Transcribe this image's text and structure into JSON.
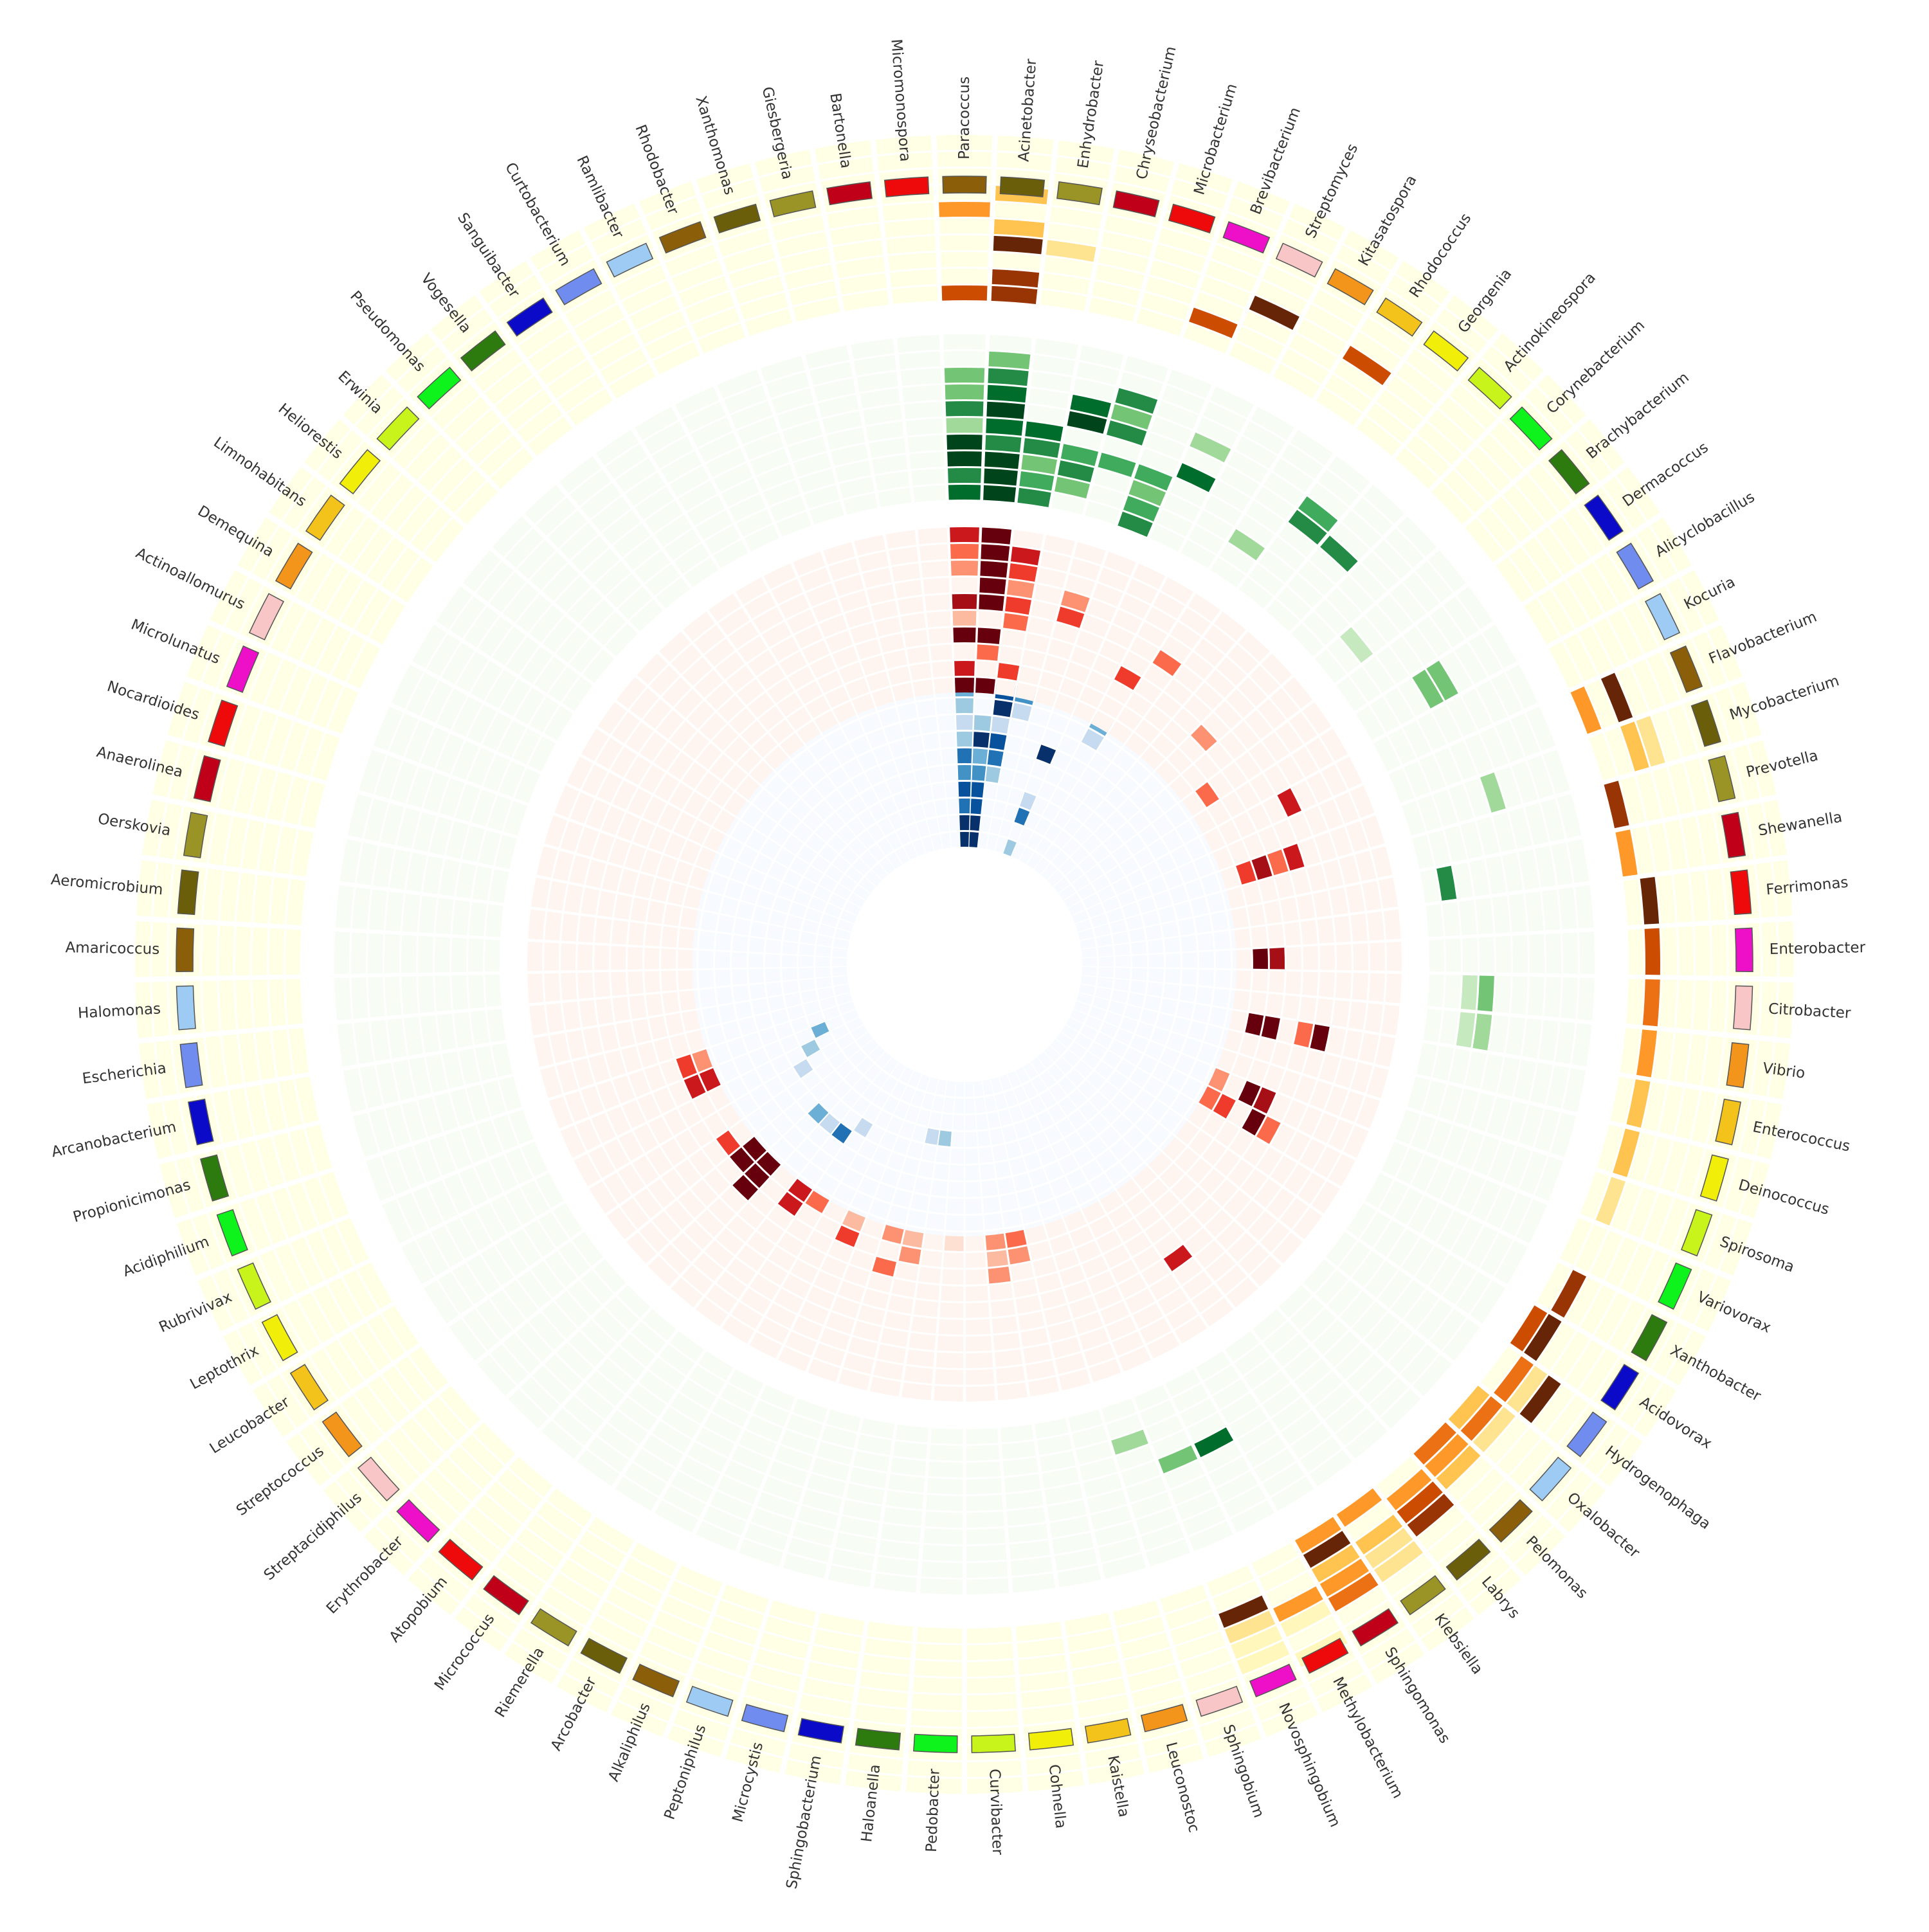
{
  "chart_data": {
    "type": "heatmap",
    "layout": "circular",
    "title": "",
    "categories": [
      "Paracoccus",
      "Acinetobacter",
      "Enhydrobacter",
      "Chryseobacterium",
      "Microbacterium",
      "Brevibacterium",
      "Streptomyces",
      "Kitasatospora",
      "Rhodococcus",
      "Georgenia",
      "Actinokineospora",
      "Corynebacterium",
      "Brachybacterium",
      "Dermacoccus",
      "Alicyclobacillus",
      "Kocuria",
      "Flavobacterium",
      "Mycobacterium",
      "Prevotella",
      "Shewanella",
      "Ferrimonas",
      "Enterobacter",
      "Citrobacter",
      "Vibrio",
      "Enterococcus",
      "Deinococcus",
      "Spirosoma",
      "Variovorax",
      "Xanthobacter",
      "Acidovorax",
      "Hydrogenophaga",
      "Oxalobacter",
      "Pelomonas",
      "Labrys",
      "Klebsiella",
      "Sphingomonas",
      "Methylobacterium",
      "Novosphingobium",
      "Sphingobium",
      "Leuconostoc",
      "Kaistella",
      "Cohnella",
      "Curvibacter",
      "Pedobacter",
      "Haloanella",
      "Sphingobacterium",
      "Microcystis",
      "Peptoniphilus",
      "Alkaliphilus",
      "Arcobacter",
      "Riemerella",
      "Micrococcus",
      "Atopobium",
      "Erythrobacter",
      "Streptacidiphilus",
      "Streptococcus",
      "Leucobacter",
      "Leptothrix",
      "Rubrivivax",
      "Acidiphilium",
      "Propionicimonas",
      "Arcanobacterium",
      "Escherichia",
      "Halomonas",
      "Amaricoccus",
      "Aeromicrobium",
      "Oerskovia",
      "Anaerolinea",
      "Nocardioides",
      "Microlunatus",
      "Actinoallomurus",
      "Demequina",
      "Limnohabitans",
      "Heliorestis",
      "Erwinia",
      "Pseudomonas",
      "Vogesella",
      "Sanguibacter",
      "Curtobacterium",
      "Ramlibacter",
      "Rhodobacter",
      "Xanthomonas",
      "Giesbergeria",
      "Bartonella",
      "Micromonospora"
    ],
    "category_colors": [
      "#8b5e0a",
      "#6b5e0a",
      "#9a9325",
      "#c00018",
      "#ee0a0a",
      "#ee10c8",
      "#f8c6c6",
      "#f3941b",
      "#f3c21b",
      "#f1ef0a",
      "#c8f31b",
      "#0ef31b",
      "#2d7a0e",
      "#0a0ac8",
      "#6f8cee",
      "#9ecbf3",
      "#8b5e0a",
      "#6b5e0a",
      "#9a9325",
      "#c00018",
      "#ee0a0a",
      "#ee10c8",
      "#f8c6c6",
      "#f3941b",
      "#f3c21b",
      "#f1ef0a",
      "#c8f31b",
      "#0ef31b",
      "#2d7a0e",
      "#0a0ac8",
      "#6f8cee",
      "#9ecbf3",
      "#8b5e0a",
      "#6b5e0a",
      "#9a9325",
      "#c00018",
      "#ee0a0a",
      "#ee10c8",
      "#f8c6c6",
      "#f3941b",
      "#f3c21b",
      "#f1ef0a",
      "#c8f31b",
      "#0ef31b",
      "#2d7a0e",
      "#0a0ac8",
      "#6f8cee",
      "#9ecbf3",
      "#8b5e0a",
      "#6b5e0a",
      "#9a9325",
      "#c00018",
      "#ee0a0a",
      "#ee10c8",
      "#f8c6c6",
      "#f3941b",
      "#f3c21b",
      "#f1ef0a",
      "#c8f31b",
      "#0ef31b",
      "#2d7a0e",
      "#0a0ac8",
      "#6f8cee",
      "#9ecbf3",
      "#8b5e0a",
      "#6b5e0a",
      "#9a9325",
      "#c00018",
      "#ee0a0a",
      "#ee10c8",
      "#f8c6c6",
      "#f3941b",
      "#f3c21b",
      "#f1ef0a",
      "#c8f31b",
      "#0ef31b",
      "#2d7a0e",
      "#0a0ac8",
      "#6f8cee",
      "#9ecbf3",
      "#8b5e0a",
      "#6b5e0a",
      "#9a9325",
      "#c00018",
      "#ee0a0a"
    ],
    "rings": [
      {
        "palette": [
          "#f7fbff",
          "#deebf7",
          "#c6dbef",
          "#9ecae1",
          "#6baed6",
          "#4292c6",
          "#2171b5",
          "#08519c",
          "#08306b"
        ]
      },
      {
        "palette": [
          "#fff5f0",
          "#fee0d2",
          "#fcbba1",
          "#fc9272",
          "#fb6a4a",
          "#ef3b2c",
          "#cb181d",
          "#a50f15",
          "#67000d"
        ]
      },
      {
        "palette": [
          "#f7fcf5",
          "#e5f5e0",
          "#c7e9c0",
          "#a1d99b",
          "#74c476",
          "#41ab5d",
          "#238b45",
          "#006d2c",
          "#00441b"
        ]
      },
      {
        "palette": [
          "#ffffe5",
          "#fff7bc",
          "#fee391",
          "#fec44f",
          "#fe9929",
          "#ec7014",
          "#cc4c02",
          "#993404",
          "#662506"
        ]
      }
    ],
    "value_range": [
      0,
      8
    ],
    "cells": [
      [
        0,
        0,
        0,
        8
      ],
      [
        0,
        0,
        1,
        8
      ],
      [
        0,
        0,
        2,
        6
      ],
      [
        0,
        0,
        3,
        7
      ],
      [
        0,
        0,
        4,
        5
      ],
      [
        0,
        0,
        5,
        6
      ],
      [
        0,
        0,
        6,
        3
      ],
      [
        0,
        0,
        7,
        2
      ],
      [
        0,
        0,
        8,
        3
      ],
      [
        0,
        0,
        9,
        4
      ],
      [
        0,
        1,
        0,
        8
      ],
      [
        0,
        1,
        1,
        8
      ],
      [
        0,
        1,
        2,
        7
      ],
      [
        0,
        1,
        3,
        7
      ],
      [
        0,
        1,
        4,
        5
      ],
      [
        0,
        1,
        5,
        4
      ],
      [
        0,
        1,
        6,
        8
      ],
      [
        0,
        1,
        7,
        3
      ],
      [
        0,
        2,
        4,
        3
      ],
      [
        0,
        2,
        5,
        6
      ],
      [
        0,
        2,
        6,
        7
      ],
      [
        0,
        2,
        7,
        2
      ],
      [
        0,
        2,
        8,
        8
      ],
      [
        0,
        2,
        9,
        7
      ],
      [
        0,
        3,
        8,
        2
      ],
      [
        0,
        3,
        9,
        5
      ],
      [
        0,
        5,
        0,
        3
      ],
      [
        0,
        5,
        2,
        6
      ],
      [
        0,
        5,
        3,
        2
      ],
      [
        0,
        5,
        6,
        8
      ],
      [
        0,
        7,
        8,
        2
      ],
      [
        0,
        7,
        9,
        4
      ],
      [
        0,
        44,
        3,
        3
      ],
      [
        0,
        45,
        3,
        2
      ],
      [
        0,
        50,
        4,
        2
      ],
      [
        0,
        51,
        5,
        6
      ],
      [
        0,
        52,
        5,
        2
      ],
      [
        0,
        53,
        5,
        4
      ],
      [
        0,
        56,
        4,
        2
      ],
      [
        0,
        57,
        3,
        3
      ],
      [
        0,
        58,
        2,
        4
      ],
      [
        1,
        0,
        0,
        8
      ],
      [
        1,
        0,
        1,
        6
      ],
      [
        1,
        0,
        3,
        8
      ],
      [
        1,
        0,
        4,
        2
      ],
      [
        1,
        0,
        5,
        7
      ],
      [
        1,
        0,
        7,
        3
      ],
      [
        1,
        0,
        8,
        4
      ],
      [
        1,
        0,
        9,
        6
      ],
      [
        1,
        1,
        0,
        8
      ],
      [
        1,
        1,
        2,
        4
      ],
      [
        1,
        1,
        3,
        8
      ],
      [
        1,
        1,
        5,
        8
      ],
      [
        1,
        1,
        6,
        8
      ],
      [
        1,
        1,
        7,
        8
      ],
      [
        1,
        1,
        8,
        8
      ],
      [
        1,
        1,
        9,
        8
      ],
      [
        1,
        2,
        1,
        5
      ],
      [
        1,
        2,
        4,
        4
      ],
      [
        1,
        2,
        5,
        5
      ],
      [
        1,
        2,
        6,
        3
      ],
      [
        1,
        2,
        7,
        5
      ],
      [
        1,
        2,
        8,
        6
      ],
      [
        1,
        4,
        5,
        5
      ],
      [
        1,
        4,
        6,
        3
      ],
      [
        1,
        7,
        3,
        5
      ],
      [
        1,
        8,
        5,
        4
      ],
      [
        1,
        11,
        3,
        3
      ],
      [
        1,
        13,
        1,
        4
      ],
      [
        1,
        15,
        5,
        6
      ],
      [
        1,
        17,
        1,
        5
      ],
      [
        1,
        17,
        2,
        7
      ],
      [
        1,
        17,
        3,
        4
      ],
      [
        1,
        17,
        4,
        6
      ],
      [
        1,
        21,
        1,
        8
      ],
      [
        1,
        21,
        2,
        7
      ],
      [
        1,
        24,
        1,
        8
      ],
      [
        1,
        24,
        2,
        8
      ],
      [
        1,
        24,
        4,
        4
      ],
      [
        1,
        24,
        5,
        8
      ],
      [
        1,
        27,
        0,
        3
      ],
      [
        1,
        27,
        2,
        8
      ],
      [
        1,
        27,
        3,
        7
      ],
      [
        1,
        28,
        0,
        4
      ],
      [
        1,
        28,
        1,
        5
      ],
      [
        1,
        28,
        3,
        8
      ],
      [
        1,
        28,
        4,
        4
      ],
      [
        1,
        34,
        5,
        6
      ],
      [
        1,
        40,
        0,
        4
      ],
      [
        1,
        40,
        1,
        3
      ],
      [
        1,
        41,
        0,
        3
      ],
      [
        1,
        41,
        1,
        2
      ],
      [
        1,
        41,
        2,
        3
      ],
      [
        1,
        43,
        0,
        1
      ],
      [
        1,
        45,
        0,
        2
      ],
      [
        1,
        45,
        1,
        3
      ],
      [
        1,
        46,
        0,
        3
      ],
      [
        1,
        46,
        2,
        4
      ],
      [
        1,
        48,
        0,
        2
      ],
      [
        1,
        48,
        1,
        5
      ],
      [
        1,
        50,
        0,
        4
      ],
      [
        1,
        51,
        0,
        6
      ],
      [
        1,
        51,
        1,
        6
      ],
      [
        1,
        53,
        0,
        8
      ],
      [
        1,
        53,
        1,
        8
      ],
      [
        1,
        53,
        2,
        8
      ],
      [
        1,
        54,
        0,
        8
      ],
      [
        1,
        54,
        1,
        8
      ],
      [
        1,
        55,
        1,
        5
      ],
      [
        1,
        58,
        0,
        6
      ],
      [
        1,
        58,
        1,
        6
      ],
      [
        1,
        59,
        0,
        3
      ],
      [
        1,
        59,
        1,
        5
      ],
      [
        2,
        0,
        0,
        7
      ],
      [
        2,
        0,
        1,
        6
      ],
      [
        2,
        0,
        2,
        8
      ],
      [
        2,
        0,
        3,
        8
      ],
      [
        2,
        0,
        4,
        3
      ],
      [
        2,
        0,
        5,
        6
      ],
      [
        2,
        0,
        6,
        4
      ],
      [
        2,
        0,
        7,
        4
      ],
      [
        2,
        1,
        0,
        8
      ],
      [
        2,
        1,
        1,
        8
      ],
      [
        2,
        1,
        2,
        8
      ],
      [
        2,
        1,
        3,
        6
      ],
      [
        2,
        1,
        4,
        7
      ],
      [
        2,
        1,
        5,
        8
      ],
      [
        2,
        1,
        6,
        7
      ],
      [
        2,
        1,
        7,
        6
      ],
      [
        2,
        1,
        8,
        4
      ],
      [
        2,
        2,
        0,
        6
      ],
      [
        2,
        2,
        1,
        5
      ],
      [
        2,
        2,
        2,
        4
      ],
      [
        2,
        2,
        3,
        6
      ],
      [
        2,
        2,
        4,
        7
      ],
      [
        2,
        3,
        1,
        4
      ],
      [
        2,
        3,
        2,
        6
      ],
      [
        2,
        3,
        3,
        5
      ],
      [
        2,
        3,
        5,
        8
      ],
      [
        2,
        3,
        6,
        7
      ],
      [
        2,
        4,
        3,
        5
      ],
      [
        2,
        4,
        5,
        6
      ],
      [
        2,
        4,
        6,
        4
      ],
      [
        2,
        4,
        7,
        6
      ],
      [
        2,
        5,
        0,
        6
      ],
      [
        2,
        5,
        1,
        5
      ],
      [
        2,
        5,
        2,
        4
      ],
      [
        2,
        5,
        3,
        5
      ],
      [
        2,
        6,
        4,
        7
      ],
      [
        2,
        6,
        6,
        3
      ],
      [
        2,
        8,
        2,
        3
      ],
      [
        2,
        9,
        5,
        6
      ],
      [
        2,
        9,
        6,
        5
      ],
      [
        2,
        10,
        5,
        6
      ],
      [
        2,
        12,
        2,
        2
      ],
      [
        2,
        14,
        4,
        4
      ],
      [
        2,
        14,
        5,
        4
      ],
      [
        2,
        17,
        5,
        3
      ],
      [
        2,
        19,
        1,
        6
      ],
      [
        2,
        22,
        2,
        2
      ],
      [
        2,
        22,
        3,
        4
      ],
      [
        2,
        23,
        2,
        2
      ],
      [
        2,
        23,
        3,
        3
      ],
      [
        2,
        36,
        4,
        7
      ],
      [
        2,
        37,
        4,
        4
      ],
      [
        2,
        38,
        2,
        3
      ],
      [
        3,
        0,
        0,
        6
      ],
      [
        3,
        0,
        5,
        4
      ],
      [
        3,
        1,
        0,
        7
      ],
      [
        3,
        1,
        1,
        7
      ],
      [
        3,
        1,
        3,
        8
      ],
      [
        3,
        1,
        4,
        3
      ],
      [
        3,
        1,
        6,
        3
      ],
      [
        3,
        2,
        3,
        2
      ],
      [
        3,
        5,
        1,
        6
      ],
      [
        3,
        6,
        3,
        8
      ],
      [
        3,
        8,
        3,
        6
      ],
      [
        3,
        16,
        0,
        4
      ],
      [
        3,
        16,
        2,
        8
      ],
      [
        3,
        17,
        2,
        3
      ],
      [
        3,
        17,
        3,
        2
      ],
      [
        3,
        18,
        0,
        7
      ],
      [
        3,
        19,
        0,
        4
      ],
      [
        3,
        20,
        1,
        8
      ],
      [
        3,
        21,
        1,
        6
      ],
      [
        3,
        22,
        1,
        5
      ],
      [
        3,
        23,
        1,
        4
      ],
      [
        3,
        24,
        1,
        3
      ],
      [
        3,
        25,
        1,
        3
      ],
      [
        3,
        26,
        1,
        2
      ],
      [
        3,
        28,
        1,
        7
      ],
      [
        3,
        29,
        0,
        6
      ],
      [
        3,
        29,
        1,
        8
      ],
      [
        3,
        30,
        1,
        5
      ],
      [
        3,
        30,
        2,
        2
      ],
      [
        3,
        30,
        3,
        8
      ],
      [
        3,
        31,
        0,
        3
      ],
      [
        3,
        31,
        1,
        5
      ],
      [
        3,
        31,
        2,
        2
      ],
      [
        3,
        32,
        0,
        5
      ],
      [
        3,
        32,
        1,
        4
      ],
      [
        3,
        32,
        2,
        3
      ],
      [
        3,
        33,
        1,
        4
      ],
      [
        3,
        33,
        2,
        6
      ],
      [
        3,
        33,
        3,
        7
      ],
      [
        3,
        34,
        0,
        4
      ],
      [
        3,
        34,
        2,
        3
      ],
      [
        3,
        34,
        3,
        2
      ],
      [
        3,
        34,
        4,
        2
      ],
      [
        3,
        35,
        0,
        4
      ],
      [
        3,
        35,
        1,
        8
      ],
      [
        3,
        35,
        2,
        3
      ],
      [
        3,
        35,
        3,
        4
      ],
      [
        3,
        35,
        4,
        5
      ],
      [
        3,
        36,
        3,
        4
      ],
      [
        3,
        36,
        4,
        1
      ],
      [
        3,
        36,
        6,
        1
      ],
      [
        3,
        37,
        2,
        8
      ],
      [
        3,
        37,
        3,
        2
      ],
      [
        3,
        37,
        4,
        1
      ],
      [
        3,
        37,
        5,
        1
      ]
    ]
  }
}
